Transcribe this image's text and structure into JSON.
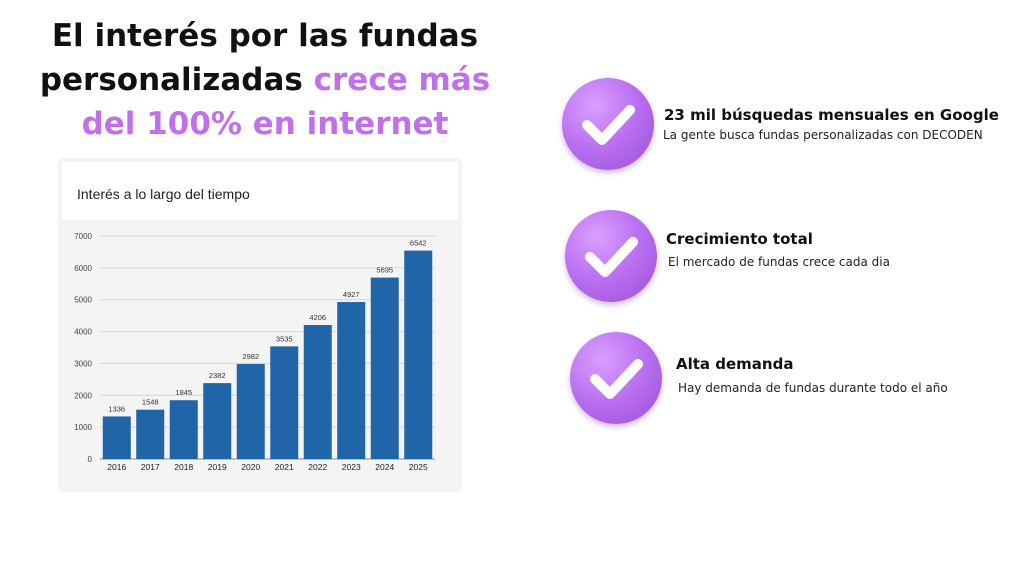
{
  "headline": {
    "line1": "El interés por las fundas",
    "line2_plain": "personalizadas ",
    "line2_accent": "crece más",
    "line3_accent": "del 100% en internet"
  },
  "colors": {
    "accent": "#c070e8",
    "bar": "#1f65a7",
    "check_circle": "#b96ef0"
  },
  "features": [
    {
      "icon": "check-circle-icon",
      "title": "23 mil búsquedas mensuales en Google",
      "desc": "La gente busca fundas personalizadas con DECODEN"
    },
    {
      "icon": "check-circle-icon",
      "title": "Crecimiento total",
      "desc": "El mercado de fundas crece cada dia"
    },
    {
      "icon": "check-circle-icon",
      "title": "Alta demanda",
      "desc": "Hay demanda de fundas durante todo el año"
    }
  ],
  "chart_data": {
    "type": "bar",
    "title": "Interés a lo largo del tiempo",
    "categories": [
      "2016",
      "2017",
      "2018",
      "2019",
      "2020",
      "2021",
      "2022",
      "2023",
      "2024",
      "2025"
    ],
    "values": [
      1336,
      1548,
      1845,
      2382,
      2982,
      3535,
      4206,
      4927,
      5695,
      6542
    ],
    "yticks": [
      0,
      1000,
      2000,
      3000,
      4000,
      5000,
      6000,
      7000
    ],
    "ylim": [
      0,
      7000
    ],
    "grid": true,
    "data_labels": true
  }
}
